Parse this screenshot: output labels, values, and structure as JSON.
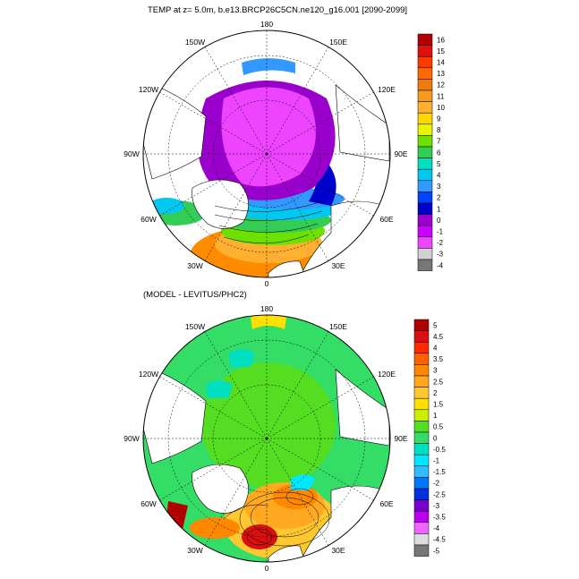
{
  "top_panel": {
    "title": "TEMP at z=   5.0m, b.e13.BRCP26C5CN.ne120_g16.001 [2090-2099]",
    "lon_labels": [
      "180",
      "150E",
      "120E",
      "90E",
      "60E",
      "30E",
      "0",
      "30W",
      "60W",
      "90W",
      "120W",
      "150W"
    ],
    "colorbar": {
      "labels": [
        "16",
        "15",
        "14",
        "13",
        "12",
        "11",
        "10",
        "9",
        "8",
        "7",
        "6",
        "5",
        "4",
        "3",
        "2",
        "1",
        "0",
        "-1",
        "-2",
        "-3",
        "-4"
      ],
      "colors": [
        "#b20000",
        "#e01010",
        "#ff3a00",
        "#ff6a00",
        "#f07a10",
        "#f59a20",
        "#ffb030",
        "#ffd700",
        "#e6f500",
        "#6ee000",
        "#33cc55",
        "#00e0c0",
        "#00c8f0",
        "#3399ff",
        "#0044ff",
        "#0000cc",
        "#9900cc",
        "#cc00ff",
        "#ee44ff",
        "#d0d0d0",
        "#777777"
      ]
    }
  },
  "bottom_panel": {
    "title": "(MODEL - LEVITUS/PHC2)",
    "lon_labels": [
      "180",
      "150E",
      "120E",
      "90E",
      "60E",
      "30E",
      "0",
      "30W",
      "60W",
      "90W",
      "120W",
      "150W"
    ],
    "colorbar": {
      "labels": [
        "5",
        "4.5",
        "4",
        "3.5",
        "3",
        "2.5",
        "2",
        "1.5",
        "1",
        "0.5",
        "0",
        "-0.5",
        "-1",
        "-1.5",
        "-2",
        "-2.5",
        "-3",
        "-3.5",
        "-4",
        "-4.5",
        "-5"
      ],
      "colors": [
        "#b20000",
        "#d81010",
        "#ff2a00",
        "#ff6000",
        "#ff8800",
        "#ffa820",
        "#ffc830",
        "#ffe000",
        "#ccee00",
        "#55dd22",
        "#33dd66",
        "#00e0c0",
        "#00e8ff",
        "#33bbff",
        "#0077ff",
        "#0033dd",
        "#7700cc",
        "#bb00ee",
        "#ee66ff",
        "#dddddd",
        "#777777"
      ]
    }
  }
}
